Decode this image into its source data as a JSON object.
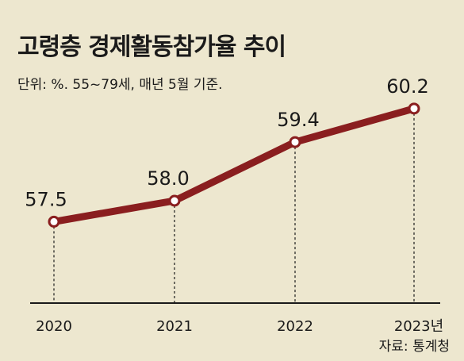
{
  "title": "고령층 경제활동참가율 추이",
  "unit_note": "단위: %. 55~79세, 매년 5월 기준.",
  "source": "자료: 통계청",
  "colors": {
    "line": "#8a1e1f",
    "marker_fill": "#ffffff",
    "background": "#ede7cf",
    "axis": "#1a1a1a"
  },
  "chart_data": {
    "type": "line",
    "categories": [
      "2020",
      "2021",
      "2022",
      "2023년"
    ],
    "series": [
      {
        "values": [
          57.5,
          58.0,
          59.4,
          60.2
        ]
      }
    ],
    "value_labels": [
      "57.5",
      "58.0",
      "59.4",
      "60.2"
    ],
    "ylim": [
      55.5,
      60.5
    ],
    "grid": false
  }
}
